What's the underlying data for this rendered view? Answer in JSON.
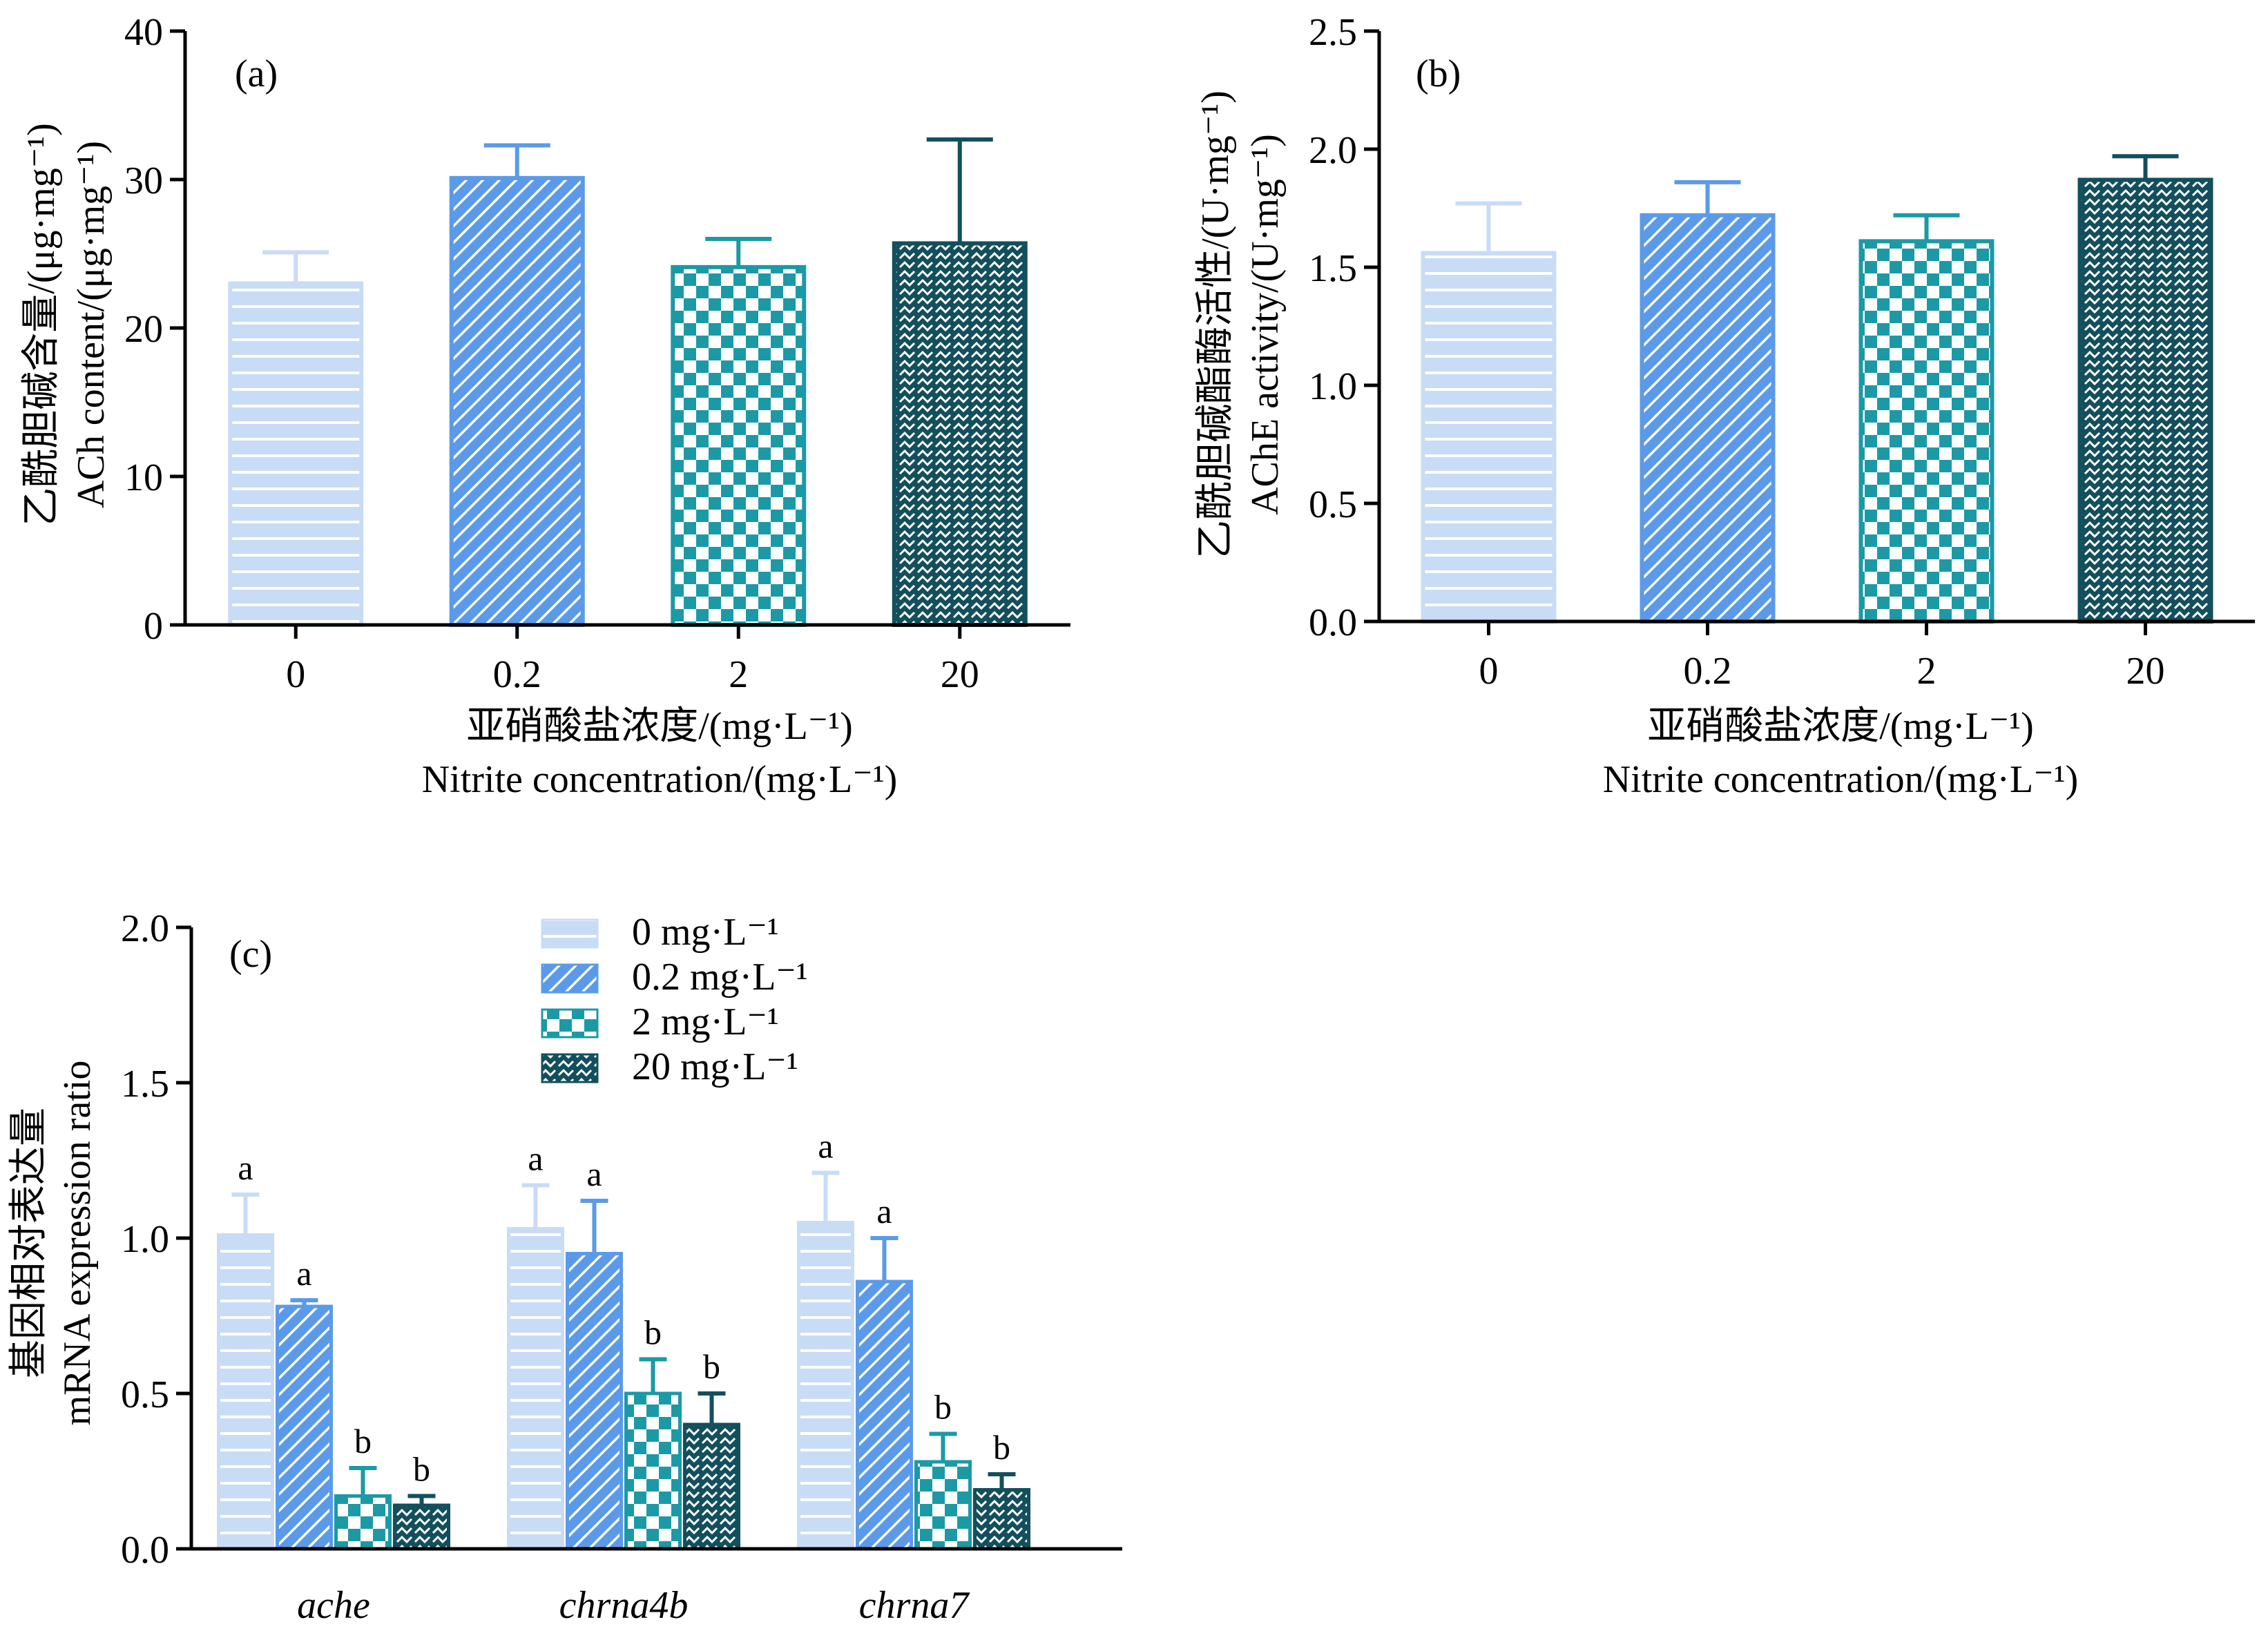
{
  "chart_data": [
    {
      "type": "bar",
      "panel_label": "(a)",
      "categories": [
        "0",
        "0.2",
        "2",
        "20"
      ],
      "values": [
        23.0,
        30.1,
        24.1,
        25.7
      ],
      "errors": [
        2.1,
        2.2,
        1.9,
        7.0
      ],
      "ylim": [
        0,
        40
      ],
      "yticks": [
        "0",
        "10",
        "20",
        "30",
        "40"
      ],
      "ytick_values": [
        0,
        10,
        20,
        30,
        40
      ],
      "ylabel_zh": "乙酰胆碱含量/(μg·mg⁻¹)",
      "ylabel_en": "ACh content/(μg·mg⁻¹)",
      "xlabel_zh": "亚硝酸盐浓度/(mg·L⁻¹)",
      "xlabel_en": "Nitrite concentration/(mg·L⁻¹)",
      "grid": false
    },
    {
      "type": "bar",
      "panel_label": "(b)",
      "categories": [
        "0",
        "0.2",
        "2",
        "20"
      ],
      "values": [
        1.56,
        1.72,
        1.61,
        1.87
      ],
      "errors": [
        0.21,
        0.14,
        0.11,
        0.1
      ],
      "ylim": [
        0,
        2.5
      ],
      "yticks": [
        "0.0",
        "0.5",
        "1.0",
        "1.5",
        "2.0",
        "2.5"
      ],
      "ytick_values": [
        0,
        0.5,
        1.0,
        1.5,
        2.0,
        2.5
      ],
      "ylabel_zh": "乙酰胆碱酯酶活性/(U·mg⁻¹)",
      "ylabel_en": "AChE activity/(U·mg⁻¹)",
      "xlabel_zh": "亚硝酸盐浓度/(mg·L⁻¹)",
      "xlabel_en": "Nitrite concentration/(mg·L⁻¹)",
      "grid": false
    },
    {
      "type": "bar",
      "panel_label": "(c)",
      "categories": [
        "ache",
        "chrna4b",
        "chrna7"
      ],
      "series": [
        {
          "name": "0 mg·L⁻¹",
          "values": [
            1.01,
            1.03,
            1.05
          ],
          "errors": [
            0.13,
            0.14,
            0.16
          ],
          "labels": [
            "a",
            "a",
            "a"
          ]
        },
        {
          "name": "0.2 mg·L⁻¹",
          "values": [
            0.78,
            0.95,
            0.86
          ],
          "errors": [
            0.02,
            0.17,
            0.14
          ],
          "labels": [
            "a",
            "a",
            "a"
          ]
        },
        {
          "name": "2 mg·L⁻¹",
          "values": [
            0.17,
            0.5,
            0.28
          ],
          "errors": [
            0.09,
            0.11,
            0.09
          ],
          "labels": [
            "b",
            "b",
            "b"
          ]
        },
        {
          "name": "20 mg·L⁻¹",
          "values": [
            0.14,
            0.4,
            0.19
          ],
          "errors": [
            0.03,
            0.1,
            0.05
          ],
          "labels": [
            "b",
            "b",
            "b"
          ]
        }
      ],
      "ylim": [
        0,
        2.0
      ],
      "yticks": [
        "0.0",
        "0.5",
        "1.0",
        "1.5",
        "2.0"
      ],
      "ytick_values": [
        0,
        0.5,
        1.0,
        1.5,
        2.0
      ],
      "ylabel_zh": "基因相对表达量",
      "ylabel_en": "mRNA expression ratio",
      "legend_position": "top-center",
      "grid": false
    }
  ],
  "colors": {
    "s0": "#c9dcf6",
    "s1": "#5b9ae8",
    "s2": "#1b9aa6",
    "s3": "#134f5c",
    "axis": "#000000"
  }
}
